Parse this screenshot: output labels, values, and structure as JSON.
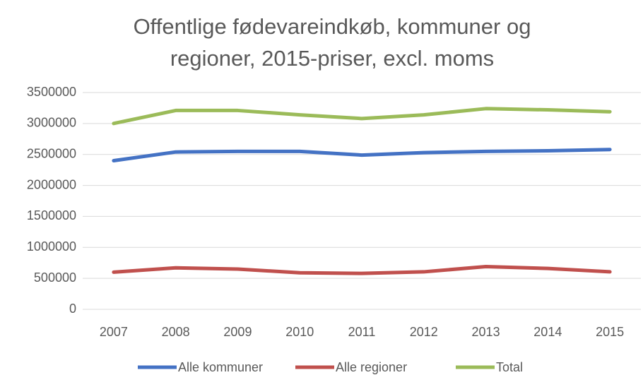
{
  "chart_data": {
    "type": "line",
    "title": "Offentlige fødevareindkøb, kommuner og",
    "subtitle": "regioner, 2015-priser, excl. moms",
    "categories": [
      "2007",
      "2008",
      "2009",
      "2010",
      "2011",
      "2012",
      "2013",
      "2014",
      "2015"
    ],
    "series": [
      {
        "name": "Alle kommuner",
        "color": "#4472c4",
        "values": [
          2400000,
          2540000,
          2550000,
          2550000,
          2490000,
          2530000,
          2550000,
          2560000,
          2580000
        ]
      },
      {
        "name": "Alle regioner",
        "color": "#c0504d",
        "values": [
          600000,
          670000,
          650000,
          590000,
          580000,
          605000,
          690000,
          660000,
          605000
        ]
      },
      {
        "name": "Total",
        "color": "#9bbb59",
        "values": [
          3000000,
          3210000,
          3210000,
          3140000,
          3080000,
          3140000,
          3240000,
          3220000,
          3190000
        ]
      }
    ],
    "ylim": [
      0,
      3500000
    ],
    "yticks": [
      0,
      500000,
      1000000,
      1500000,
      2000000,
      2500000,
      3000000,
      3500000
    ],
    "grid": true,
    "legend": "bottom"
  }
}
